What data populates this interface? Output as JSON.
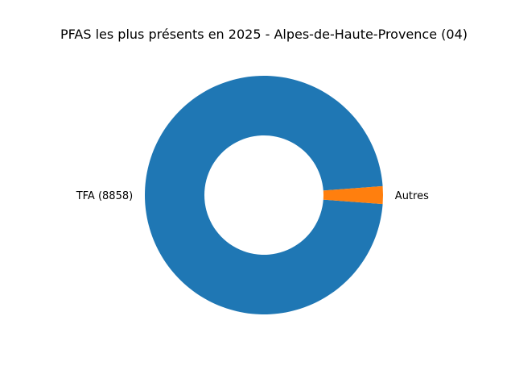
{
  "chart_data": {
    "type": "pie",
    "variant": "donut",
    "title": "PFAS les plus présents en 2025 - Alpes-de-Haute-Provence (04)",
    "categories": [
      "TFA (8858)",
      "Autres"
    ],
    "values": [
      8858,
      218
    ],
    "colors": [
      "#1f77b4",
      "#ff7f0e"
    ],
    "legend": "none"
  }
}
